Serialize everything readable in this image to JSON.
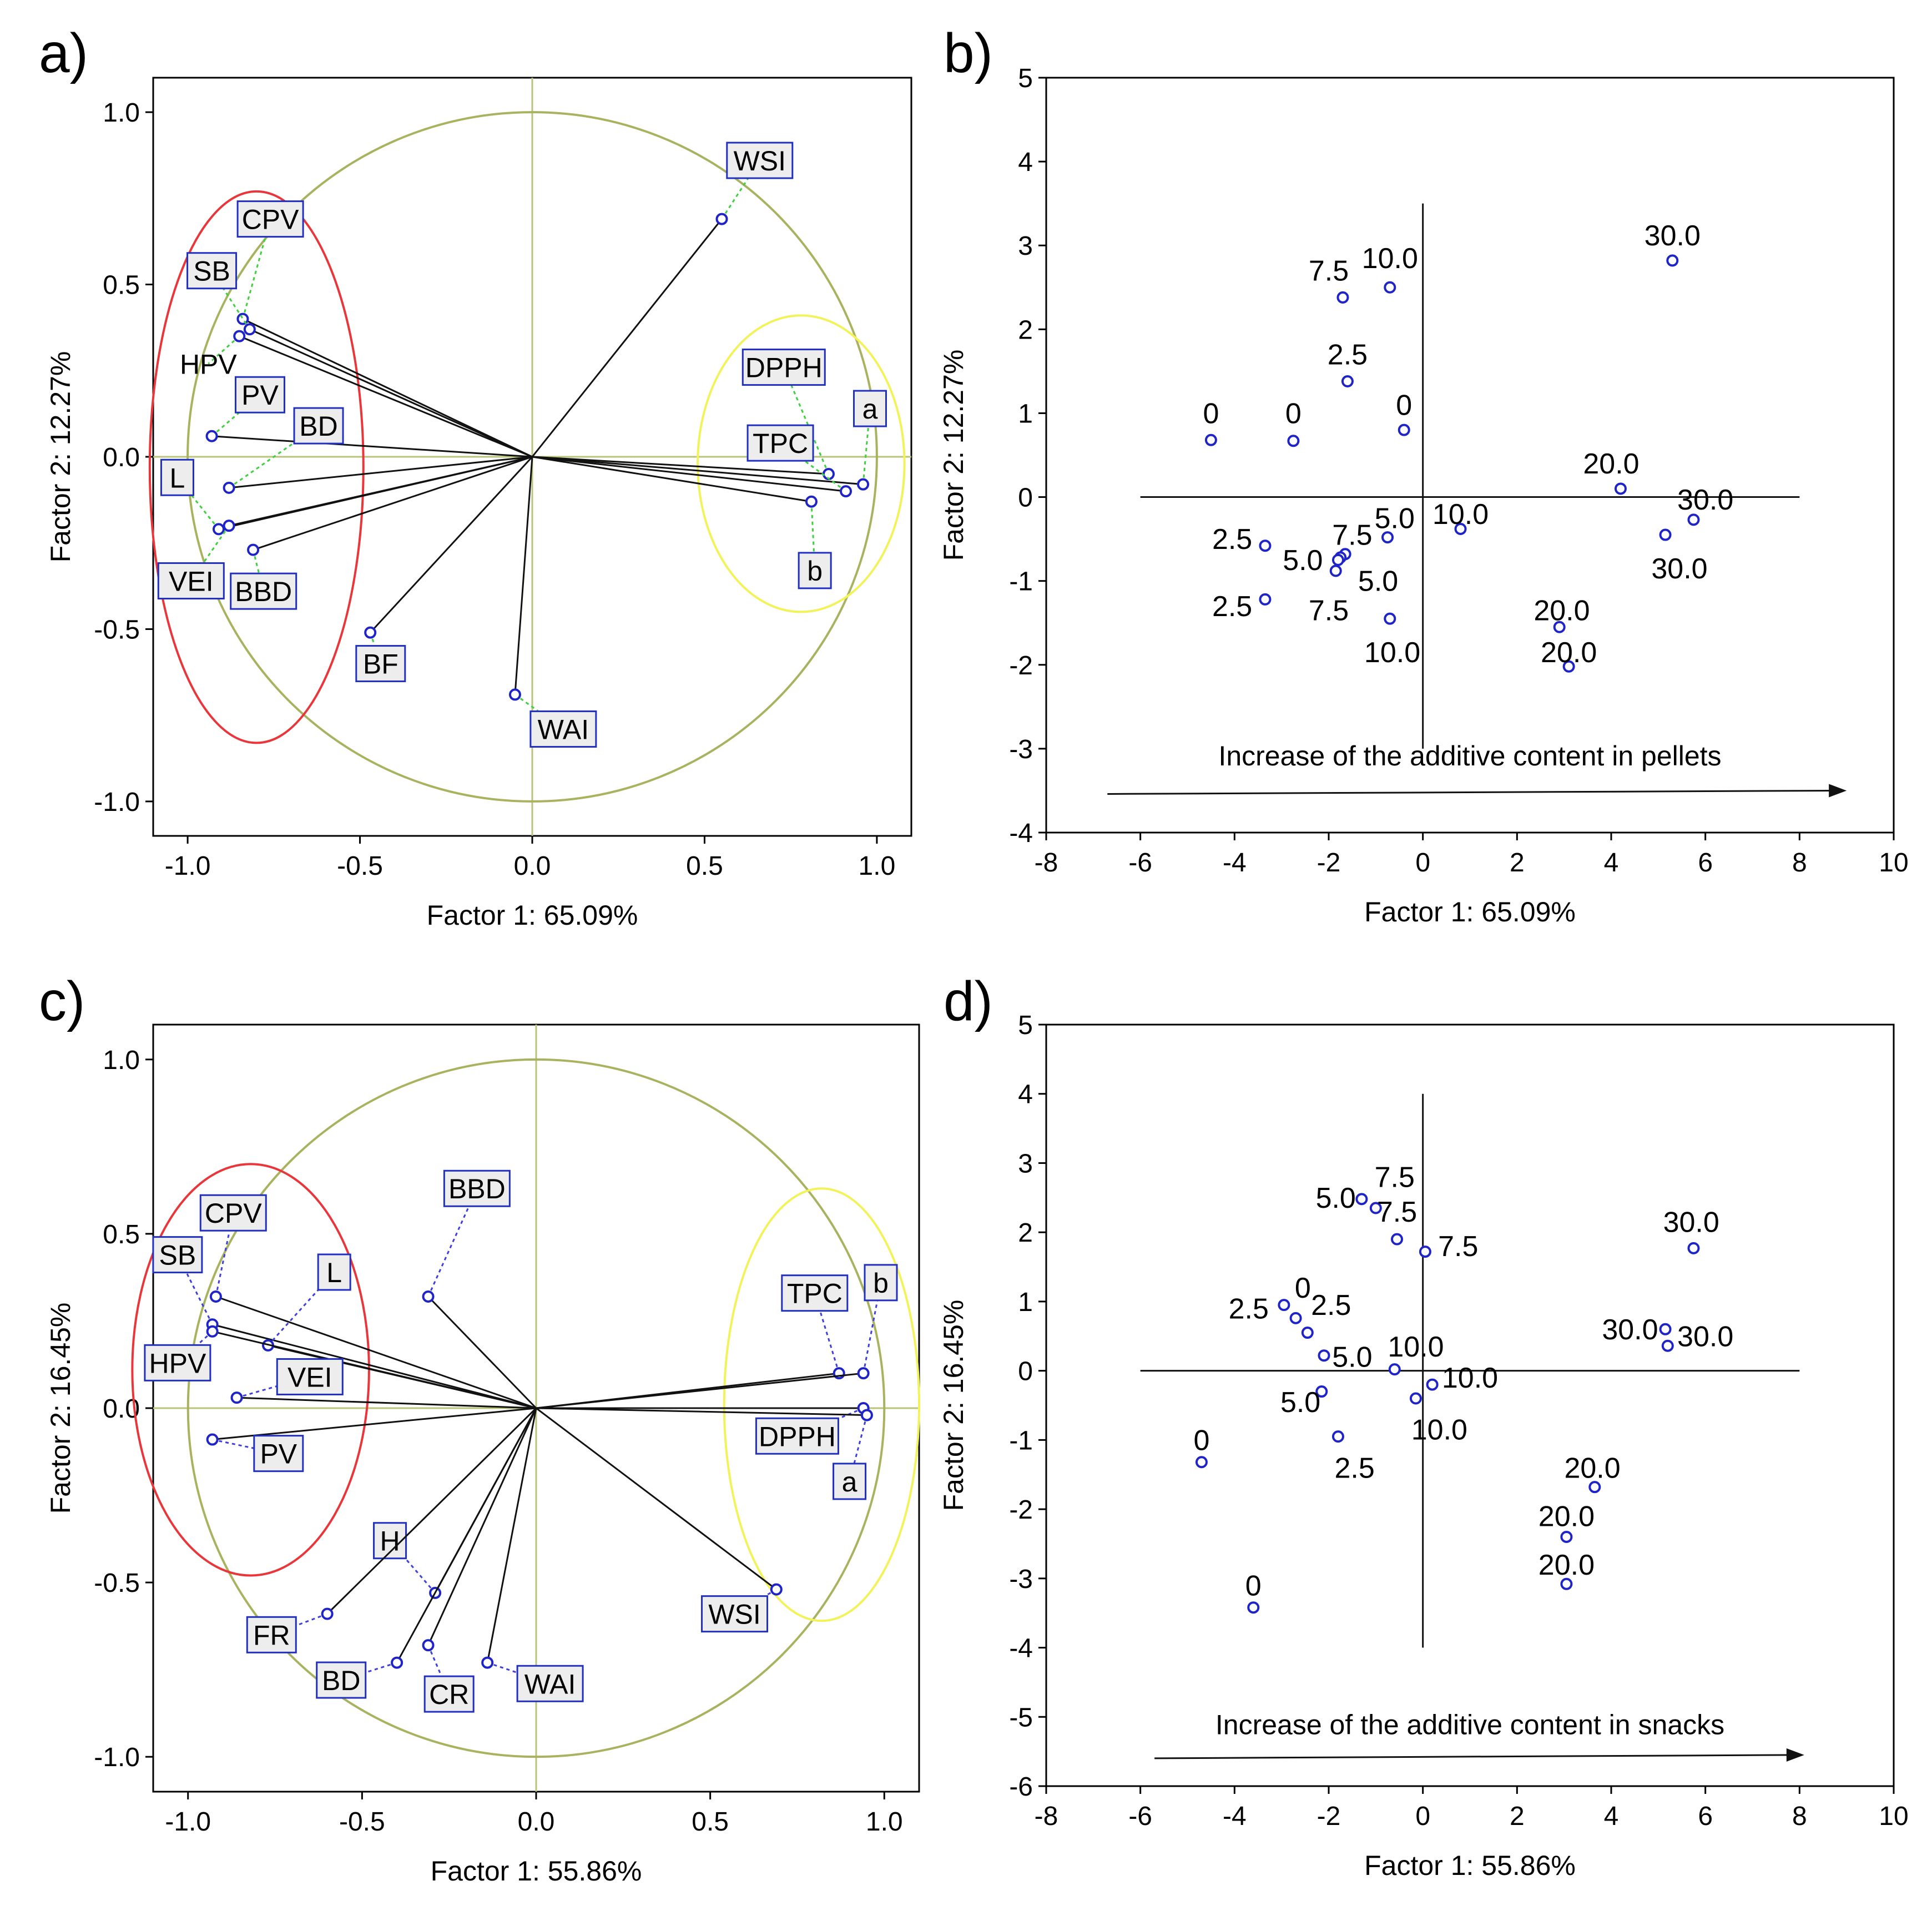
{
  "chart_data": [
    {
      "id": "a",
      "panel_label": "a)",
      "type": "scatter",
      "subtype": "pca-loadings",
      "xlabel": "Factor 1: 65.09%",
      "ylabel": "Factor 2: 12.27%",
      "xlim": [
        -1.1,
        1.1
      ],
      "ylim": [
        -1.1,
        1.1
      ],
      "xticks": [
        "-1.0",
        "-0.5",
        "0.0",
        "0.5",
        "1.0"
      ],
      "yticks": [
        "-1.0",
        "-0.5",
        "0.0",
        "0.5",
        "1.0"
      ],
      "points": [
        {
          "label": "WSI",
          "x": 0.55,
          "y": 0.69,
          "lx": 0.66,
          "ly": 0.86,
          "boxed": true
        },
        {
          "label": "CPV",
          "x": -0.84,
          "y": 0.4,
          "lx": -0.76,
          "ly": 0.69,
          "boxed": true
        },
        {
          "label": "SB",
          "x": -0.82,
          "y": 0.37,
          "lx": -0.93,
          "ly": 0.54,
          "boxed": true
        },
        {
          "label": "HPV",
          "x": -0.85,
          "y": 0.35,
          "lx": -0.94,
          "ly": 0.27,
          "boxed": false
        },
        {
          "label": "PV",
          "x": -0.93,
          "y": 0.06,
          "lx": -0.79,
          "ly": 0.18,
          "boxed": true
        },
        {
          "label": "BD",
          "x": -0.88,
          "y": -0.09,
          "lx": -0.62,
          "ly": 0.09,
          "boxed": true
        },
        {
          "label": "L",
          "x": -0.91,
          "y": -0.21,
          "lx": -1.03,
          "ly": -0.06,
          "boxed": true
        },
        {
          "label": "VEI",
          "x": -0.88,
          "y": -0.2,
          "lx": -0.99,
          "ly": -0.36,
          "boxed": true
        },
        {
          "label": "BBD",
          "x": -0.81,
          "y": -0.27,
          "lx": -0.78,
          "ly": -0.39,
          "boxed": true
        },
        {
          "label": "BF",
          "x": -0.47,
          "y": -0.51,
          "lx": -0.44,
          "ly": -0.6,
          "boxed": true
        },
        {
          "label": "WAI",
          "x": -0.05,
          "y": -0.69,
          "lx": 0.09,
          "ly": -0.79,
          "boxed": true
        },
        {
          "label": "DPPH",
          "x": 0.86,
          "y": -0.05,
          "lx": 0.73,
          "ly": 0.26,
          "boxed": true
        },
        {
          "label": "a",
          "x": 0.96,
          "y": -0.08,
          "lx": 0.98,
          "ly": 0.14,
          "boxed": true
        },
        {
          "label": "TPC",
          "x": 0.91,
          "y": -0.1,
          "lx": 0.72,
          "ly": 0.04,
          "boxed": true
        },
        {
          "label": "b",
          "x": 0.81,
          "y": -0.13,
          "lx": 0.82,
          "ly": -0.33,
          "boxed": true
        }
      ],
      "groups": [
        {
          "color": "#e8363b",
          "cx": -0.8,
          "cy": -0.03,
          "rx": 0.31,
          "ry": 0.8
        },
        {
          "color": "#f2f25a",
          "cx": 0.78,
          "cy": -0.02,
          "rx": 0.3,
          "ry": 0.43
        }
      ]
    },
    {
      "id": "b",
      "panel_label": "b)",
      "type": "scatter",
      "subtype": "pca-scores",
      "xlabel": "Factor 1: 65.09%",
      "ylabel": "Factor 2: 12.27%",
      "xlim": [
        -8,
        10
      ],
      "ylim": [
        -4,
        5
      ],
      "xticks": [
        "-8",
        "-6",
        "-4",
        "-2",
        "0",
        "2",
        "4",
        "6",
        "8",
        "10"
      ],
      "yticks": [
        "-4",
        "-3",
        "-2",
        "-1",
        "0",
        "1",
        "2",
        "3",
        "4",
        "5"
      ],
      "annotation": "Increase of the additive content in pellets",
      "arrow": {
        "x1": -6.7,
        "x2": 9.0,
        "y": -3.5
      },
      "annotation_pos": {
        "x": 1.0,
        "y": -3.2
      },
      "crosshair": {
        "xmin": -6,
        "xmax": 8,
        "ymin": -3,
        "ymax": 3.5
      },
      "points": [
        {
          "label": "0",
          "x": -4.5,
          "y": 0.68,
          "lx": -4.5,
          "ly": 1.0
        },
        {
          "label": "0",
          "x": -2.75,
          "y": 0.67,
          "lx": -2.75,
          "ly": 1.0
        },
        {
          "label": "0",
          "x": -0.4,
          "y": 0.8,
          "lx": -0.4,
          "ly": 1.1
        },
        {
          "label": "2.5",
          "x": -1.6,
          "y": 1.38,
          "lx": -1.6,
          "ly": 1.7
        },
        {
          "label": "7.5",
          "x": -1.7,
          "y": 2.38,
          "lx": -2.0,
          "ly": 2.7
        },
        {
          "label": "10.0",
          "x": -0.7,
          "y": 2.5,
          "lx": -0.7,
          "ly": 2.85
        },
        {
          "label": "30.0",
          "x": 5.3,
          "y": 2.82,
          "lx": 5.3,
          "ly": 3.12
        },
        {
          "label": "20.0",
          "x": 4.2,
          "y": 0.1,
          "lx": 4.0,
          "ly": 0.4
        },
        {
          "label": "30.0",
          "x": 5.75,
          "y": -0.27,
          "lx": 6.0,
          "ly": -0.03
        },
        {
          "label": "30.0",
          "x": 5.15,
          "y": -0.45,
          "lx": 5.45,
          "ly": -0.85
        },
        {
          "label": "10.0",
          "x": 0.8,
          "y": -0.38,
          "lx": 0.8,
          "ly": -0.2
        },
        {
          "label": "5.0",
          "x": -0.75,
          "y": -0.48,
          "lx": -0.6,
          "ly": -0.25
        },
        {
          "label": "7.5",
          "x": -1.65,
          "y": -0.68,
          "lx": -1.5,
          "ly": -0.45
        },
        {
          "label": "7.5",
          "x": -1.75,
          "y": -0.72,
          "lx": -2.0,
          "ly": -1.35
        },
        {
          "label": "5.0",
          "x": -1.8,
          "y": -0.75,
          "lx": -2.55,
          "ly": -0.75
        },
        {
          "label": "5.0",
          "x": -1.85,
          "y": -0.88,
          "lx": -0.95,
          "ly": -1.0
        },
        {
          "label": "2.5",
          "x": -3.35,
          "y": -0.58,
          "lx": -4.05,
          "ly": -0.5
        },
        {
          "label": "2.5",
          "x": -3.35,
          "y": -1.22,
          "lx": -4.05,
          "ly": -1.3
        },
        {
          "label": "10.0",
          "x": -0.7,
          "y": -1.45,
          "lx": -0.65,
          "ly": -1.85
        },
        {
          "label": "20.0",
          "x": 2.9,
          "y": -1.55,
          "lx": 2.95,
          "ly": -1.35
        },
        {
          "label": "20.0",
          "x": 3.1,
          "y": -2.02,
          "lx": 3.1,
          "ly": -1.85
        }
      ]
    },
    {
      "id": "c",
      "panel_label": "c)",
      "type": "scatter",
      "subtype": "pca-loadings",
      "xlabel": "Factor 1: 55.86%",
      "ylabel": "Factor 2: 16.45%",
      "xlim": [
        -1.1,
        1.1
      ],
      "ylim": [
        -1.1,
        1.1
      ],
      "xticks": [
        "-1.0",
        "-0.5",
        "0.0",
        "0.5",
        "1.0"
      ],
      "yticks": [
        "-1.0",
        "-0.5",
        "0.0",
        "0.5",
        "1.0"
      ],
      "points": [
        {
          "label": "BBD",
          "x": -0.31,
          "y": 0.32,
          "lx": -0.17,
          "ly": 0.63,
          "boxed": true
        },
        {
          "label": "CPV",
          "x": -0.92,
          "y": 0.32,
          "lx": -0.87,
          "ly": 0.56,
          "boxed": true
        },
        {
          "label": "SB",
          "x": -0.93,
          "y": 0.24,
          "lx": -1.03,
          "ly": 0.44,
          "boxed": true
        },
        {
          "label": "L",
          "x": -0.77,
          "y": 0.18,
          "lx": -0.58,
          "ly": 0.39,
          "boxed": true
        },
        {
          "label": "HPV",
          "x": -0.93,
          "y": 0.22,
          "lx": -1.03,
          "ly": 0.13,
          "boxed": true
        },
        {
          "label": "VEI",
          "x": -0.86,
          "y": 0.03,
          "lx": -0.65,
          "ly": 0.09,
          "boxed": true
        },
        {
          "label": "PV",
          "x": -0.93,
          "y": -0.09,
          "lx": -0.74,
          "ly": -0.13,
          "boxed": true
        },
        {
          "label": "H",
          "x": -0.29,
          "y": -0.53,
          "lx": -0.42,
          "ly": -0.38,
          "boxed": true
        },
        {
          "label": "FR",
          "x": -0.6,
          "y": -0.59,
          "lx": -0.76,
          "ly": -0.65,
          "boxed": true
        },
        {
          "label": "BD",
          "x": -0.4,
          "y": -0.73,
          "lx": -0.56,
          "ly": -0.78,
          "boxed": true
        },
        {
          "label": "CR",
          "x": -0.31,
          "y": -0.68,
          "lx": -0.25,
          "ly": -0.82,
          "boxed": true
        },
        {
          "label": "WAI",
          "x": -0.14,
          "y": -0.73,
          "lx": 0.04,
          "ly": -0.79,
          "boxed": true
        },
        {
          "label": "WSI",
          "x": 0.69,
          "y": -0.52,
          "lx": 0.57,
          "ly": -0.59,
          "boxed": true
        },
        {
          "label": "TPC",
          "x": 0.87,
          "y": 0.1,
          "lx": 0.8,
          "ly": 0.33,
          "boxed": true
        },
        {
          "label": "b",
          "x": 0.94,
          "y": 0.1,
          "lx": 0.99,
          "ly": 0.36,
          "boxed": true
        },
        {
          "label": "DPPH",
          "x": 0.94,
          "y": 0.0,
          "lx": 0.75,
          "ly": -0.08,
          "boxed": true
        },
        {
          "label": "a",
          "x": 0.95,
          "y": -0.02,
          "lx": 0.9,
          "ly": -0.21,
          "boxed": true
        }
      ],
      "groups": [
        {
          "color": "#e8363b",
          "cx": -0.82,
          "cy": 0.11,
          "rx": 0.34,
          "ry": 0.59
        },
        {
          "color": "#f2f25a",
          "cx": 0.82,
          "cy": 0.01,
          "rx": 0.28,
          "ry": 0.62
        }
      ]
    },
    {
      "id": "d",
      "panel_label": "d)",
      "type": "scatter",
      "subtype": "pca-scores",
      "xlabel": "Factor 1: 55.86%",
      "ylabel": "Factor 2: 16.45%",
      "xlim": [
        -8,
        10
      ],
      "ylim": [
        -6,
        5
      ],
      "xticks": [
        "-8",
        "-6",
        "-4",
        "-2",
        "0",
        "2",
        "4",
        "6",
        "8",
        "10"
      ],
      "yticks": [
        "-6",
        "-5",
        "-4",
        "-3",
        "-2",
        "-1",
        "0",
        "1",
        "2",
        "3",
        "4",
        "5"
      ],
      "annotation": "Increase of the additive content in snacks",
      "arrow": {
        "x1": -5.7,
        "x2": 8.1,
        "y": -5.55
      },
      "annotation_pos": {
        "x": 1.0,
        "y": -5.25
      },
      "crosshair": {
        "xmin": -6,
        "xmax": 8,
        "ymin": -4,
        "ymax": 4
      },
      "points": [
        {
          "label": "7.5",
          "x": -1.0,
          "y": 2.35,
          "lx": -0.6,
          "ly": 2.8
        },
        {
          "label": "5.0",
          "x": -1.3,
          "y": 2.48,
          "lx": -1.85,
          "ly": 2.5
        },
        {
          "label": "7.5",
          "x": -0.55,
          "y": 1.9,
          "lx": -0.55,
          "ly": 2.3
        },
        {
          "label": "7.5",
          "x": 0.05,
          "y": 1.72,
          "lx": 0.75,
          "ly": 1.8
        },
        {
          "label": "30.0",
          "x": 5.75,
          "y": 1.77,
          "lx": 5.7,
          "ly": 2.15
        },
        {
          "label": "2.5",
          "x": -2.95,
          "y": 0.95,
          "lx": -3.7,
          "ly": 0.9
        },
        {
          "label": "0",
          "x": -2.7,
          "y": 0.76,
          "lx": -2.55,
          "ly": 1.2
        },
        {
          "label": "2.5",
          "x": -2.45,
          "y": 0.55,
          "lx": -1.95,
          "ly": 0.95
        },
        {
          "label": "5.0",
          "x": -2.1,
          "y": 0.22,
          "lx": -1.5,
          "ly": 0.2
        },
        {
          "label": "10.0",
          "x": -0.6,
          "y": 0.02,
          "lx": -0.15,
          "ly": 0.35
        },
        {
          "label": "10.0",
          "x": 0.2,
          "y": -0.2,
          "lx": 1.0,
          "ly": -0.1
        },
        {
          "label": "10.0",
          "x": -0.15,
          "y": -0.4,
          "lx": 0.35,
          "ly": -0.85
        },
        {
          "label": "5.0",
          "x": -2.15,
          "y": -0.3,
          "lx": -2.6,
          "ly": -0.45
        },
        {
          "label": "2.5",
          "x": -1.8,
          "y": -0.95,
          "lx": -1.45,
          "ly": -1.4
        },
        {
          "label": "30.0",
          "x": 5.15,
          "y": 0.6,
          "lx": 4.4,
          "ly": 0.6
        },
        {
          "label": "30.0",
          "x": 5.2,
          "y": 0.36,
          "lx": 6.0,
          "ly": 0.5
        },
        {
          "label": "0",
          "x": -4.7,
          "y": -1.32,
          "lx": -4.7,
          "ly": -1.0
        },
        {
          "label": "20.0",
          "x": 3.65,
          "y": -1.68,
          "lx": 3.6,
          "ly": -1.4
        },
        {
          "label": "20.0",
          "x": 3.05,
          "y": -2.4,
          "lx": 3.05,
          "ly": -2.1
        },
        {
          "label": "20.0",
          "x": 3.05,
          "y": -3.08,
          "lx": 3.05,
          "ly": -2.8
        },
        {
          "label": "0",
          "x": -3.6,
          "y": -3.42,
          "lx": -3.6,
          "ly": -3.1
        }
      ]
    }
  ]
}
